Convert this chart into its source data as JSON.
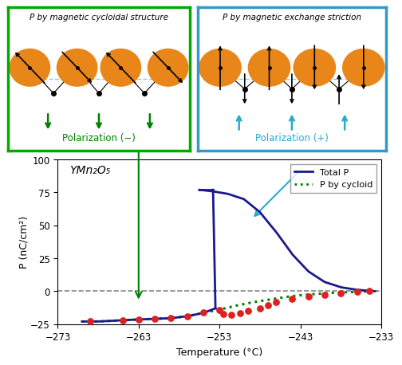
{
  "title": "YMn₂O₅",
  "xlabel": "Temperature (°C)",
  "ylabel": "P (nC/cm²)",
  "xlim": [
    -273,
    -233
  ],
  "ylim": [
    -25,
    100
  ],
  "xticks": [
    -273,
    -263,
    -253,
    -243,
    -233
  ],
  "yticks": [
    -25,
    0,
    25,
    50,
    75,
    100
  ],
  "background_color": "#ffffff",
  "total_P_color": "#1a1a8c",
  "cycloid_color": "#008000",
  "dot_color": "#e02020",
  "dashed_zero_color": "#888888",
  "green_arrow_color": "#008000",
  "blue_arrow_color": "#29aacc",
  "legend_total_label": "Total P",
  "legend_cycloid_label": "P by cycloid",
  "left_box_title": "P by magnetic cycloidal structure",
  "right_box_title": "P by magnetic exchange striction",
  "left_box_subtitle": "Polarization (−)",
  "right_box_subtitle": "Polarization (+)",
  "left_box_color": "#00aa00",
  "right_box_color": "#3399cc",
  "orange_color": "#e8861a",
  "red_dot_t": [
    -269,
    -265,
    -263,
    -261,
    -259,
    -257,
    -255,
    -253,
    -252.5,
    -251.5,
    -250.5,
    -249.5,
    -248,
    -247,
    -246,
    -244,
    -242,
    -240,
    -238,
    -236,
    -234.5
  ],
  "red_dot_p": [
    -23,
    -22,
    -21.5,
    -21,
    -20.5,
    -19,
    -16,
    -14,
    -17,
    -18,
    -16.5,
    -15,
    -13,
    -10.5,
    -8.5,
    -6,
    -4,
    -2.5,
    -1.5,
    -0.5,
    0
  ]
}
